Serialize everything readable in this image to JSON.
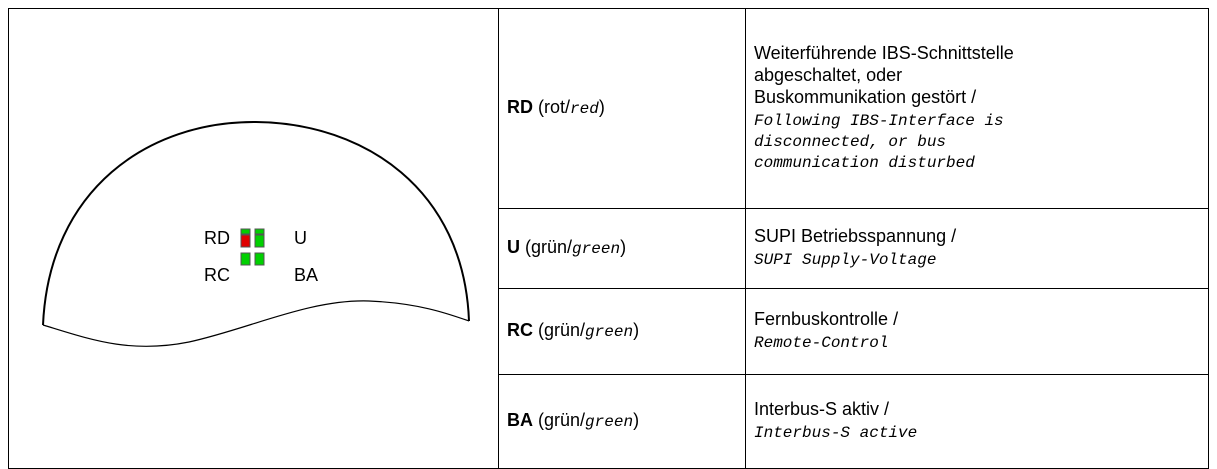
{
  "diagram": {
    "labels": [
      "RD",
      "U",
      "RC",
      "BA"
    ]
  },
  "table": {
    "rows": [
      {
        "led": "RD",
        "color_open": "(rot/",
        "color_en": "red",
        "color_close": ")",
        "desc_de": [
          "Weiterführende IBS-Schnittstelle",
          "abgeschaltet, oder",
          "Buskommunikation gestört /"
        ],
        "desc_en": [
          "Following IBS-Interface is",
          "disconnected, or bus",
          "communication disturbed"
        ]
      },
      {
        "led": "U",
        "color_open": "(grün/",
        "color_en": "green",
        "color_close": ")",
        "desc_de": [
          "SUPI Betriebsspannung /"
        ],
        "desc_en": [
          "SUPI Supply-Voltage"
        ]
      },
      {
        "led": "RC",
        "color_open": "(grün/",
        "color_en": "green",
        "color_close": ")",
        "desc_de": [
          "Fernbuskontrolle /"
        ],
        "desc_en": [
          "Remote-Control"
        ]
      },
      {
        "led": "BA",
        "color_open": "(grün/",
        "color_en": "green",
        "color_close": ")",
        "desc_de": [
          "Interbus-S aktiv /"
        ],
        "desc_en": [
          "Interbus-S active"
        ]
      }
    ]
  }
}
